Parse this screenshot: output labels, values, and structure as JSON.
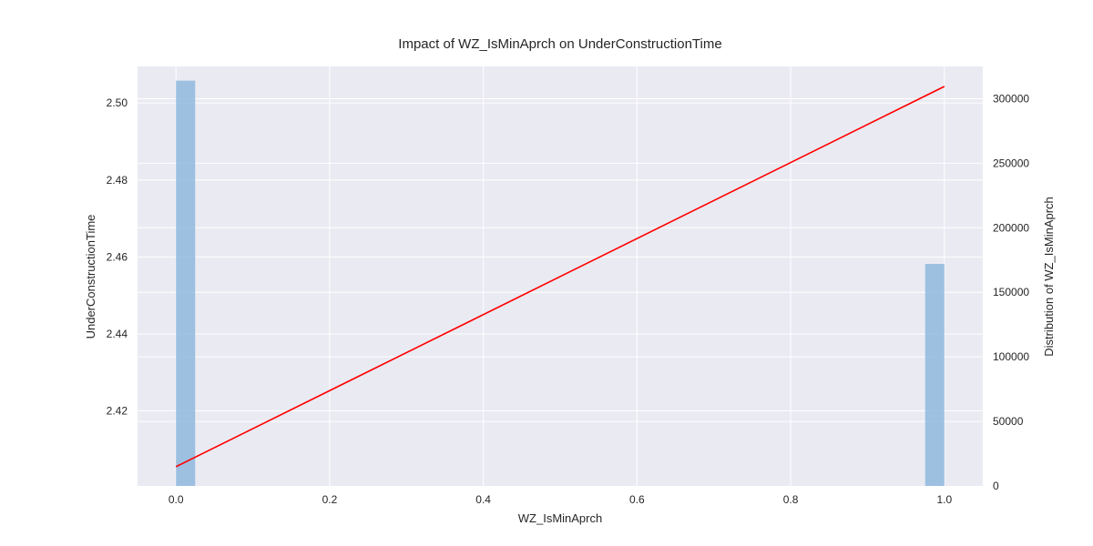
{
  "chart_data": {
    "type": "bar+line",
    "title": "Impact of WZ_IsMinAprch on UnderConstructionTime",
    "xlabel": "WZ_IsMinAprch",
    "ylabel_left": "UnderConstructionTime",
    "ylabel_right": "Distribution of WZ_IsMinAprch",
    "xlim": [
      -0.05,
      1.05
    ],
    "ylim_left": [
      2.4005,
      2.5095
    ],
    "ylim_right": [
      0,
      325000
    ],
    "x_ticks": [
      "0.0",
      "0.2",
      "0.4",
      "0.6",
      "0.8",
      "1.0"
    ],
    "y_left_ticks": [
      "2.42",
      "2.44",
      "2.46",
      "2.48",
      "2.50"
    ],
    "y_right_ticks": [
      "0",
      "50000",
      "100000",
      "150000",
      "200000",
      "250000",
      "300000"
    ],
    "grid": true,
    "histogram": {
      "name": "Distribution of WZ_IsMinAprch",
      "color": "#8fb8de",
      "bins": [
        {
          "x0": 0.0,
          "x1": 0.025,
          "count": 314000
        },
        {
          "x0": 0.975,
          "x1": 1.0,
          "count": 172000
        }
      ]
    },
    "line": {
      "name": "UnderConstructionTime",
      "color": "#ff0000",
      "x": [
        0.0,
        1.0
      ],
      "y": [
        2.4055,
        2.5043
      ]
    }
  },
  "colors": {
    "plot_background": "#eaeaf2",
    "grid": "#ffffff",
    "bar": "#8fb8de",
    "line": "#ff0000"
  }
}
